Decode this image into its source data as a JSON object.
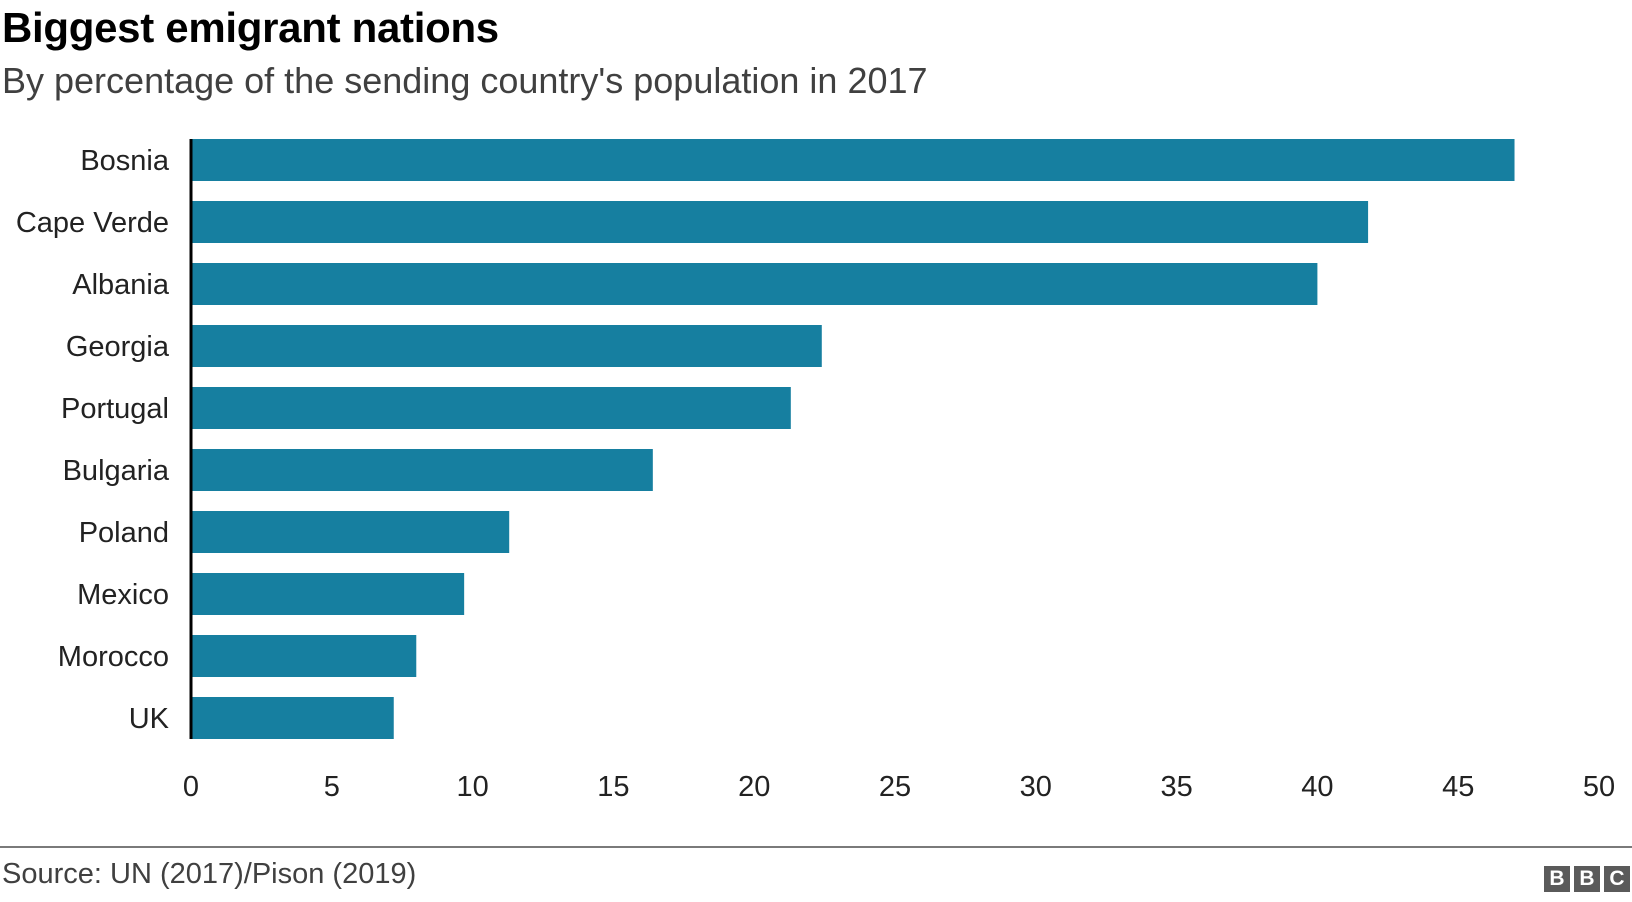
{
  "header": {
    "title": "Biggest emigrant nations",
    "subtitle": "By percentage of the sending country's population in 2017"
  },
  "footer": {
    "source": "Source: UN (2017)/Pison (2019)",
    "logo_letters": [
      "B",
      "B",
      "C"
    ]
  },
  "colors": {
    "bar": "#167fa0",
    "axis": "#000000"
  },
  "chart_data": {
    "type": "bar",
    "orientation": "horizontal",
    "title": "Biggest emigrant nations",
    "subtitle": "By percentage of the sending country's population in 2017",
    "xlabel": "",
    "ylabel": "",
    "categories": [
      "Bosnia",
      "Cape Verde",
      "Albania",
      "Georgia",
      "Portugal",
      "Bulgaria",
      "Poland",
      "Mexico",
      "Morocco",
      "UK"
    ],
    "values": [
      47.0,
      41.8,
      40.0,
      22.4,
      21.3,
      16.4,
      11.3,
      9.7,
      8.0,
      7.2
    ],
    "xlim": [
      0,
      50
    ],
    "xticks": [
      0,
      5,
      10,
      15,
      20,
      25,
      30,
      35,
      40,
      45,
      50
    ],
    "xtick_labels": [
      "0",
      "5",
      "10",
      "15",
      "20",
      "25",
      "30",
      "35",
      "40",
      "45",
      "50"
    ],
    "grid": false,
    "legend": "none",
    "source": "Source: UN (2017)/Pison (2019)"
  }
}
